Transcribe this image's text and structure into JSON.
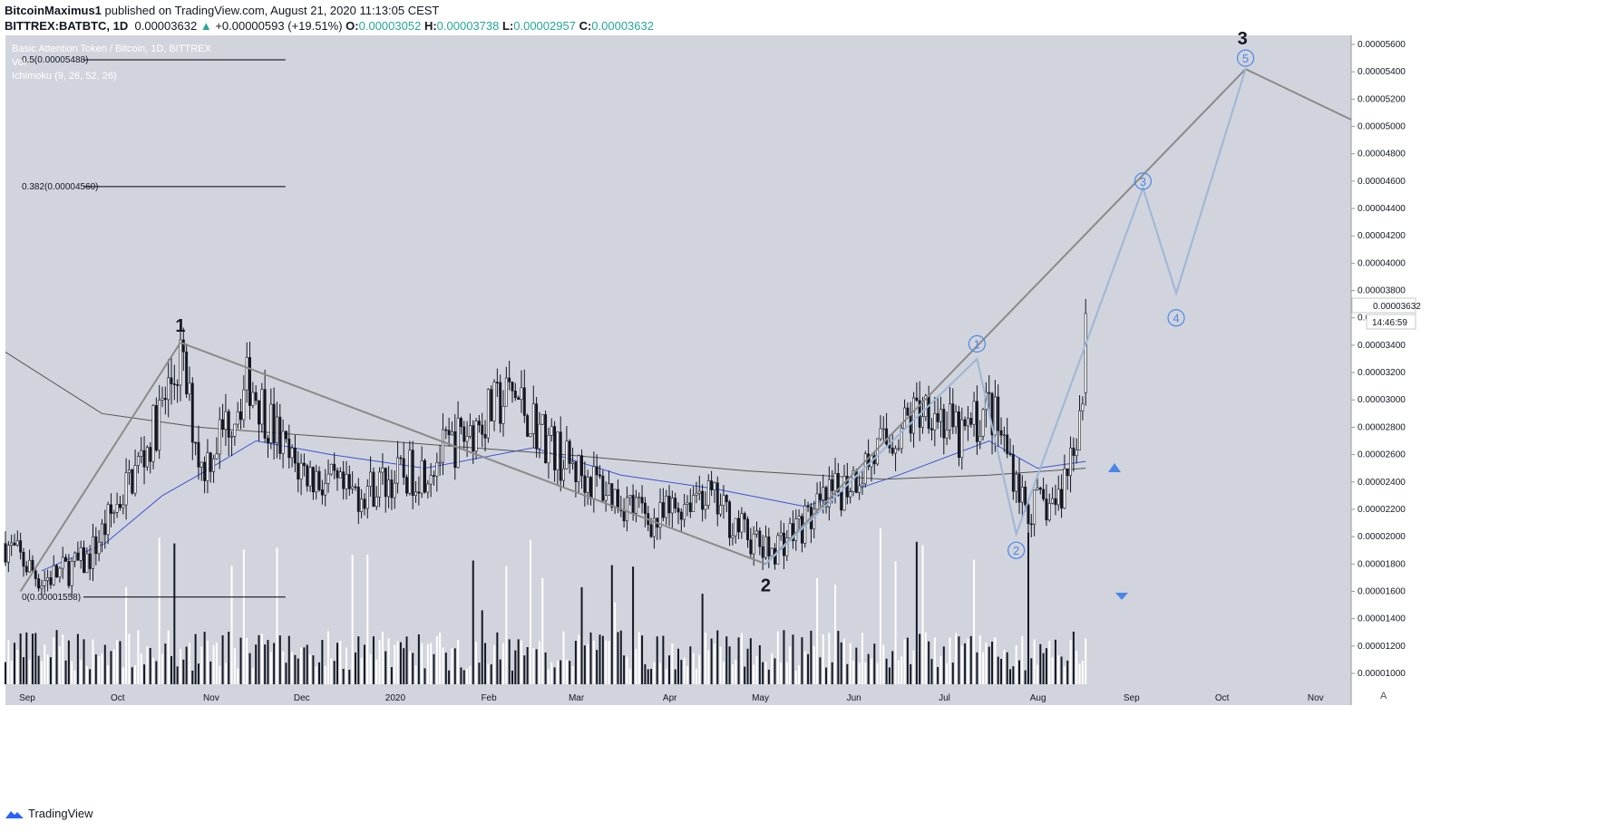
{
  "header": {
    "publisher": "BitcoinMaximus1",
    "published_text": "published on TradingView.com, August 21, 2020 11:13:05 CEST",
    "symbol": "BITTREX:BATBTC, 1D",
    "last": "0.00003632",
    "change": "+0.00000593 (+19.51%)",
    "o_label": "O:",
    "o": "0.00003052",
    "h_label": "H:",
    "h": "0.00003738",
    "l_label": "L:",
    "l": "0.00002957",
    "c_label": "C:",
    "c": "0.00003632"
  },
  "legend": {
    "title": "Basic Attention Token / Bitcoin, 1D, BITTREX",
    "vol": "Vol",
    "ichimoku": "Ichimoku (9, 26, 52, 26)"
  },
  "fib_labels": [
    "0.5(0.00005488)",
    "0.382(0.00004560)",
    "0(0.00001558)"
  ],
  "price_label": "0.00003632",
  "countdown": "14:46:59",
  "footer": {
    "brand": "TradingView"
  },
  "axis_corner": "A",
  "colors": {
    "background": "#d1d4dc",
    "candle": "#131722",
    "ma_blue": "#3f51d4",
    "ma_dark": "#555555",
    "projection": "#9db6d6",
    "label_blue": "#4a86e8",
    "volume_white": "#ffffff"
  },
  "chart_data": {
    "type": "candlestick",
    "title": "Basic Attention Token / Bitcoin, 1D, BITTREX",
    "x_tick_labels": [
      "Sep",
      "Oct",
      "Nov",
      "Dec",
      "2020",
      "Feb",
      "Mar",
      "Apr",
      "May",
      "Jun",
      "Jul",
      "Aug",
      "Sep",
      "Oct",
      "Nov"
    ],
    "y_tick_labels": [
      "0.00005600",
      "0.00005400",
      "0.00005200",
      "0.00005000",
      "0.00004800",
      "0.00004600",
      "0.00004400",
      "0.00004200",
      "0.00004000",
      "0.00003800",
      "0.00003600",
      "0.00003400",
      "0.00003200",
      "0.00003000",
      "0.00002800",
      "0.00002600",
      "0.00002400",
      "0.00002200",
      "0.00002000",
      "0.00001800",
      "0.00001600",
      "0.00001400",
      "0.00001200",
      "0.00001000"
    ],
    "y_tick_values": [
      5.6e-05,
      5.4e-05,
      5.2e-05,
      5e-05,
      4.8e-05,
      4.6e-05,
      4.4e-05,
      4.2e-05,
      4e-05,
      3.8e-05,
      3.6e-05,
      3.4e-05,
      3.2e-05,
      3e-05,
      2.8e-05,
      2.6e-05,
      2.4e-05,
      2.2e-05,
      2e-05,
      1.8e-05,
      1.6e-05,
      1.4e-05,
      1.2e-05,
      1e-05
    ],
    "ylim": [
      9.2e-06,
      5.66e-05
    ],
    "xlim": [
      "2019-08-29",
      "2020-11-17"
    ],
    "fib_levels": [
      5.488e-05,
      4.56e-05,
      1.558e-05
    ],
    "fib_range": [
      "2019-08-29",
      "2019-12-01"
    ],
    "last_close": 3.632e-05,
    "key_prices": [
      {
        "date": "2019-08-29",
        "close": 1.95e-05
      },
      {
        "date": "2019-09-10",
        "close": 1.68e-05
      },
      {
        "date": "2019-09-25",
        "close": 1.82e-05
      },
      {
        "date": "2019-10-15",
        "close": 2.65e-05
      },
      {
        "date": "2019-10-26",
        "close": 3.3e-05
      },
      {
        "date": "2019-11-02",
        "close": 2.5e-05
      },
      {
        "date": "2019-11-18",
        "close": 3.15e-05
      },
      {
        "date": "2019-12-01",
        "close": 2.55e-05
      },
      {
        "date": "2019-12-20",
        "close": 2.3e-05
      },
      {
        "date": "2020-01-15",
        "close": 2.5e-05
      },
      {
        "date": "2020-02-13",
        "close": 3.05e-05
      },
      {
        "date": "2020-03-01",
        "close": 2.55e-05
      },
      {
        "date": "2020-04-01",
        "close": 2.1e-05
      },
      {
        "date": "2020-04-15",
        "close": 2.35e-05
      },
      {
        "date": "2020-05-07",
        "close": 1.88e-05
      },
      {
        "date": "2020-05-25",
        "close": 2.2e-05
      },
      {
        "date": "2020-06-10",
        "close": 2.55e-05
      },
      {
        "date": "2020-06-30",
        "close": 3e-05
      },
      {
        "date": "2020-07-10",
        "close": 2.7e-05
      },
      {
        "date": "2020-07-20",
        "close": 2.95e-05
      },
      {
        "date": "2020-07-29",
        "close": 2.45e-05
      },
      {
        "date": "2020-08-01",
        "close": 2.2e-05
      },
      {
        "date": "2020-08-12",
        "close": 2.25e-05
      },
      {
        "date": "2020-08-17",
        "close": 2.7e-05
      },
      {
        "date": "2020-08-20",
        "close": 3.05e-05
      },
      {
        "date": "2020-08-21",
        "close": 3.632e-05
      }
    ],
    "series": [
      {
        "name": "blue MA",
        "points": [
          {
            "date": "2019-09-10",
            "value": 1.75e-05
          },
          {
            "date": "2019-10-01",
            "value": 1.95e-05
          },
          {
            "date": "2019-10-20",
            "value": 2.3e-05
          },
          {
            "date": "2019-11-01",
            "value": 2.45e-05
          },
          {
            "date": "2019-11-20",
            "value": 2.7e-05
          },
          {
            "date": "2019-12-15",
            "value": 2.6e-05
          },
          {
            "date": "2020-01-15",
            "value": 2.5e-05
          },
          {
            "date": "2020-02-20",
            "value": 2.65e-05
          },
          {
            "date": "2020-03-20",
            "value": 2.45e-05
          },
          {
            "date": "2020-04-20",
            "value": 2.35e-05
          },
          {
            "date": "2020-05-20",
            "value": 2.22e-05
          },
          {
            "date": "2020-06-20",
            "value": 2.45e-05
          },
          {
            "date": "2020-07-20",
            "value": 2.7e-05
          },
          {
            "date": "2020-08-05",
            "value": 2.5e-05
          },
          {
            "date": "2020-08-21",
            "value": 2.55e-05
          }
        ]
      },
      {
        "name": "dark MA",
        "points": [
          {
            "date": "2019-08-29",
            "value": 3.35e-05
          },
          {
            "date": "2019-09-30",
            "value": 2.9e-05
          },
          {
            "date": "2019-11-01",
            "value": 2.8e-05
          },
          {
            "date": "2020-01-01",
            "value": 2.7e-05
          },
          {
            "date": "2020-03-01",
            "value": 2.6e-05
          },
          {
            "date": "2020-05-01",
            "value": 2.48e-05
          },
          {
            "date": "2020-06-15",
            "value": 2.42e-05
          },
          {
            "date": "2020-07-20",
            "value": 2.45e-05
          },
          {
            "date": "2020-08-21",
            "value": 2.5e-05
          }
        ]
      }
    ],
    "wave_labels": [
      {
        "text": "1",
        "date": "2019-10-26",
        "price": 3.5e-05
      },
      {
        "text": "2",
        "date": "2020-05-07",
        "price": 1.6e-05
      },
      {
        "text": "3",
        "date": "2020-10-12",
        "price": 5.6e-05
      }
    ],
    "sub_wave_labels": [
      {
        "text": "1",
        "date": "2020-07-16",
        "price": 3.41e-05
      },
      {
        "text": "2",
        "date": "2020-07-29",
        "price": 1.9e-05
      },
      {
        "text": "3",
        "date": "2020-09-09",
        "price": 4.6e-05
      },
      {
        "text": "4",
        "date": "2020-09-20",
        "price": 3.6e-05
      },
      {
        "text": "5",
        "date": "2020-10-13",
        "price": 5.5e-05
      }
    ],
    "trend_lines": [
      {
        "from": {
          "date": "2019-09-03",
          "price": 1.6e-05
        },
        "to": {
          "date": "2019-10-26",
          "price": 3.42e-05
        }
      },
      {
        "from": {
          "date": "2019-10-26",
          "price": 3.42e-05
        },
        "to": {
          "date": "2020-05-07",
          "price": 1.8e-05
        }
      },
      {
        "from": {
          "date": "2020-05-07",
          "price": 1.8e-05
        },
        "to": {
          "date": "2020-10-13",
          "price": 5.42e-05
        }
      },
      {
        "from": {
          "date": "2020-10-13",
          "price": 5.42e-05
        },
        "to": {
          "date": "2020-11-17",
          "price": 5.05e-05
        }
      }
    ],
    "projection": [
      {
        "date": "2020-05-07",
        "price": 1.8e-05
      },
      {
        "date": "2020-07-16",
        "price": 3.3e-05
      },
      {
        "date": "2020-07-29",
        "price": 2.02e-05
      },
      {
        "date": "2020-09-09",
        "price": 4.55e-05
      },
      {
        "date": "2020-09-20",
        "price": 3.78e-05
      },
      {
        "date": "2020-10-13",
        "price": 5.42e-05
      }
    ]
  }
}
